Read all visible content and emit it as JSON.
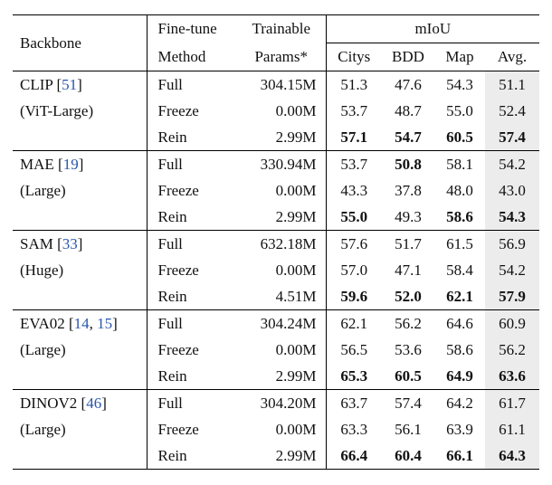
{
  "table": {
    "header": {
      "backbone": "Backbone",
      "finetune_line1": "Fine-tune",
      "finetune_line2": "Method",
      "params_line1": "Trainable",
      "params_line2": "Params*",
      "miou": "mIoU",
      "sub_columns": [
        "Citys",
        "BDD",
        "Map",
        "Avg."
      ]
    },
    "groups": [
      {
        "name": "CLIP",
        "cite": "51",
        "variant": "(ViT-Large)",
        "rows": [
          {
            "method": "Full",
            "params": "304.15M",
            "values": [
              "51.3",
              "47.6",
              "54.3",
              "51.1"
            ],
            "bold": [
              false,
              false,
              false,
              false
            ]
          },
          {
            "method": "Freeze",
            "params": "0.00M",
            "values": [
              "53.7",
              "48.7",
              "55.0",
              "52.4"
            ],
            "bold": [
              false,
              false,
              false,
              false
            ]
          },
          {
            "method": "Rein",
            "params": "2.99M",
            "values": [
              "57.1",
              "54.7",
              "60.5",
              "57.4"
            ],
            "bold": [
              true,
              true,
              true,
              true
            ]
          }
        ]
      },
      {
        "name": "MAE",
        "cite": "19",
        "variant": "(Large)",
        "rows": [
          {
            "method": "Full",
            "params": "330.94M",
            "values": [
              "53.7",
              "50.8",
              "58.1",
              "54.2"
            ],
            "bold": [
              false,
              true,
              false,
              false
            ]
          },
          {
            "method": "Freeze",
            "params": "0.00M",
            "values": [
              "43.3",
              "37.8",
              "48.0",
              "43.0"
            ],
            "bold": [
              false,
              false,
              false,
              false
            ]
          },
          {
            "method": "Rein",
            "params": "2.99M",
            "values": [
              "55.0",
              "49.3",
              "58.6",
              "54.3"
            ],
            "bold": [
              true,
              false,
              true,
              true
            ]
          }
        ]
      },
      {
        "name": "SAM",
        "cite": "33",
        "variant": "(Huge)",
        "rows": [
          {
            "method": "Full",
            "params": "632.18M",
            "values": [
              "57.6",
              "51.7",
              "61.5",
              "56.9"
            ],
            "bold": [
              false,
              false,
              false,
              false
            ]
          },
          {
            "method": "Freeze",
            "params": "0.00M",
            "values": [
              "57.0",
              "47.1",
              "58.4",
              "54.2"
            ],
            "bold": [
              false,
              false,
              false,
              false
            ]
          },
          {
            "method": "Rein",
            "params": "4.51M",
            "values": [
              "59.6",
              "52.0",
              "62.1",
              "57.9"
            ],
            "bold": [
              true,
              true,
              true,
              true
            ]
          }
        ]
      },
      {
        "name": "EVA02",
        "cite": "14, 15",
        "variant": "(Large)",
        "rows": [
          {
            "method": "Full",
            "params": "304.24M",
            "values": [
              "62.1",
              "56.2",
              "64.6",
              "60.9"
            ],
            "bold": [
              false,
              false,
              false,
              false
            ]
          },
          {
            "method": "Freeze",
            "params": "0.00M",
            "values": [
              "56.5",
              "53.6",
              "58.6",
              "56.2"
            ],
            "bold": [
              false,
              false,
              false,
              false
            ]
          },
          {
            "method": "Rein",
            "params": "2.99M",
            "values": [
              "65.3",
              "60.5",
              "64.9",
              "63.6"
            ],
            "bold": [
              true,
              true,
              true,
              true
            ]
          }
        ]
      },
      {
        "name": "DINOV2",
        "cite": "46",
        "variant": "(Large)",
        "rows": [
          {
            "method": "Full",
            "params": "304.20M",
            "values": [
              "63.7",
              "57.4",
              "64.2",
              "61.7"
            ],
            "bold": [
              false,
              false,
              false,
              false
            ]
          },
          {
            "method": "Freeze",
            "params": "0.00M",
            "values": [
              "63.3",
              "56.1",
              "63.9",
              "61.1"
            ],
            "bold": [
              false,
              false,
              false,
              false
            ]
          },
          {
            "method": "Rein",
            "params": "2.99M",
            "values": [
              "66.4",
              "60.4",
              "66.1",
              "64.3"
            ],
            "bold": [
              true,
              true,
              true,
              true
            ]
          }
        ]
      }
    ],
    "colors": {
      "citation_blue": "#2a56ad",
      "avg_column_bg": "#ececec",
      "border": "#000000",
      "text": "#111111"
    }
  }
}
